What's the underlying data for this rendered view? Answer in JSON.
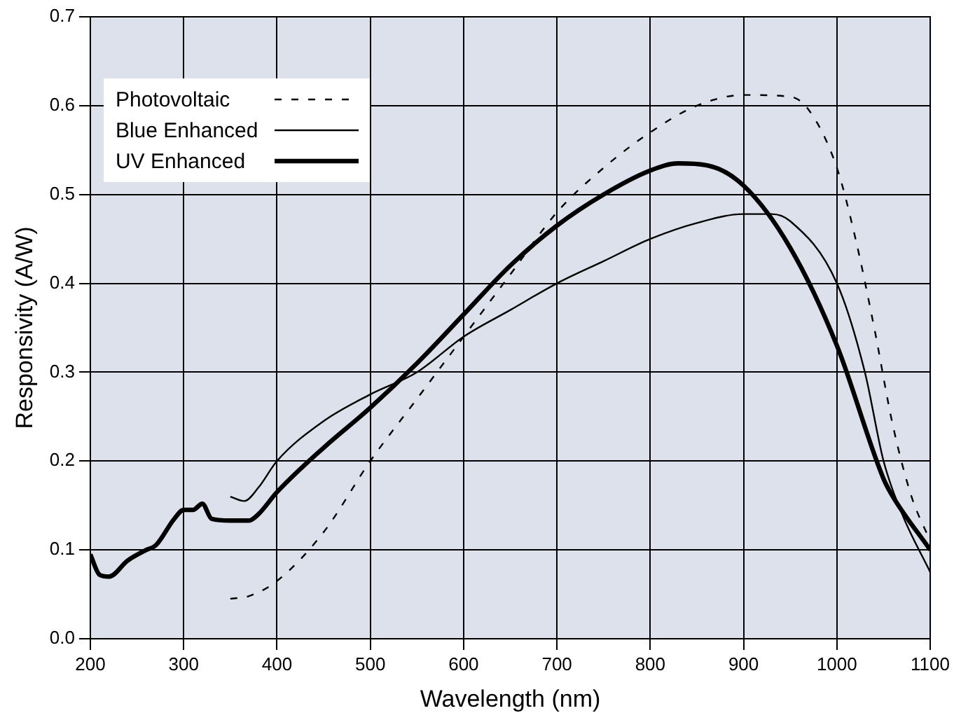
{
  "chart_data": {
    "type": "line",
    "xlabel": "Wavelength (nm)",
    "ylabel": "Responsivity (A/W)",
    "xlim": [
      200,
      1100
    ],
    "ylim": [
      0,
      0.7
    ],
    "xticks": [
      200,
      300,
      400,
      500,
      600,
      700,
      800,
      900,
      1000,
      1100
    ],
    "yticks": [
      {
        "value": 0,
        "label": "0.0"
      },
      0.1,
      0.2,
      0.3,
      0.4,
      0.5,
      0.6,
      0.7
    ],
    "grid": true,
    "legend": "top left",
    "marker": "none",
    "series": [
      {
        "name": "Photovoltaic",
        "color": "#000000",
        "line_style": "dashed",
        "x": [
          350,
          370,
          400,
          450,
          500,
          550,
          600,
          650,
          700,
          750,
          800,
          850,
          900,
          950,
          970,
          1000,
          1020,
          1040,
          1060,
          1080,
          1100
        ],
        "values": [
          0.045,
          0.048,
          0.065,
          0.12,
          0.2,
          0.27,
          0.34,
          0.41,
          0.48,
          0.53,
          0.57,
          0.6,
          0.612,
          0.61,
          0.595,
          0.53,
          0.45,
          0.35,
          0.24,
          0.16,
          0.11
        ]
      },
      {
        "name": "Blue Enhanced",
        "color": "#000000",
        "line_style": "solid",
        "x": [
          350,
          365,
          380,
          400,
          450,
          500,
          550,
          600,
          650,
          700,
          750,
          800,
          850,
          900,
          930,
          950,
          1000,
          1030,
          1050,
          1070,
          1100
        ],
        "values": [
          0.16,
          0.155,
          0.17,
          0.2,
          0.245,
          0.275,
          0.3,
          0.34,
          0.37,
          0.4,
          0.425,
          0.45,
          0.468,
          0.478,
          0.478,
          0.47,
          0.4,
          0.3,
          0.2,
          0.14,
          0.075
        ]
      },
      {
        "name": "UV Enhanced",
        "color": "#000000",
        "line_style": "solid",
        "x": [
          200,
          210,
          220,
          240,
          260,
          270,
          290,
          300,
          310,
          320,
          330,
          350,
          370,
          380,
          400,
          450,
          500,
          550,
          600,
          650,
          700,
          750,
          800,
          830,
          860,
          900,
          950,
          1000,
          1050,
          1060,
          1100
        ],
        "values": [
          0.095,
          0.072,
          0.07,
          0.088,
          0.1,
          0.105,
          0.135,
          0.145,
          0.145,
          0.152,
          0.135,
          0.133,
          0.133,
          0.14,
          0.165,
          0.215,
          0.26,
          0.31,
          0.365,
          0.42,
          0.465,
          0.5,
          0.527,
          0.535,
          0.533,
          0.51,
          0.44,
          0.33,
          0.18,
          0.16,
          0.1
        ]
      }
    ]
  }
}
